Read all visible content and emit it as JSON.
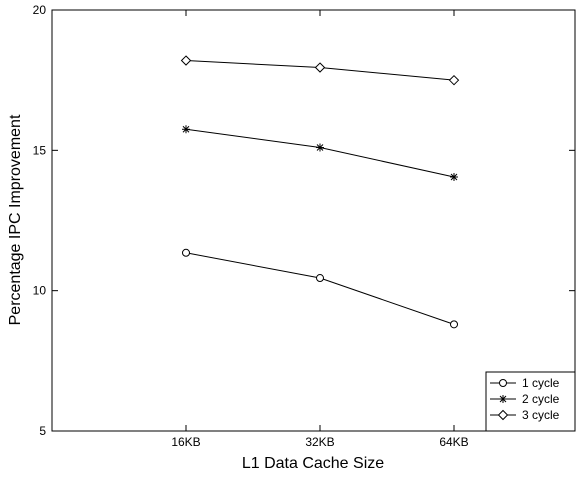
{
  "chart_data": {
    "type": "line",
    "title": "",
    "xlabel": "L1 Data Cache Size",
    "ylabel": "Percentage IPC Improvement",
    "categories": [
      "16KB",
      "32KB",
      "64KB"
    ],
    "ylim": [
      5,
      20
    ],
    "yticks": [
      5,
      10,
      15,
      20
    ],
    "grid": false,
    "legend_position": "bottom-right",
    "series": [
      {
        "name": "1 cycle",
        "marker": "circle",
        "values": [
          11.35,
          10.45,
          8.8
        ]
      },
      {
        "name": "2 cycle",
        "marker": "star",
        "values": [
          15.75,
          15.1,
          14.05
        ]
      },
      {
        "name": "3 cycle",
        "marker": "diamond",
        "values": [
          18.2,
          17.95,
          17.5
        ]
      }
    ]
  }
}
